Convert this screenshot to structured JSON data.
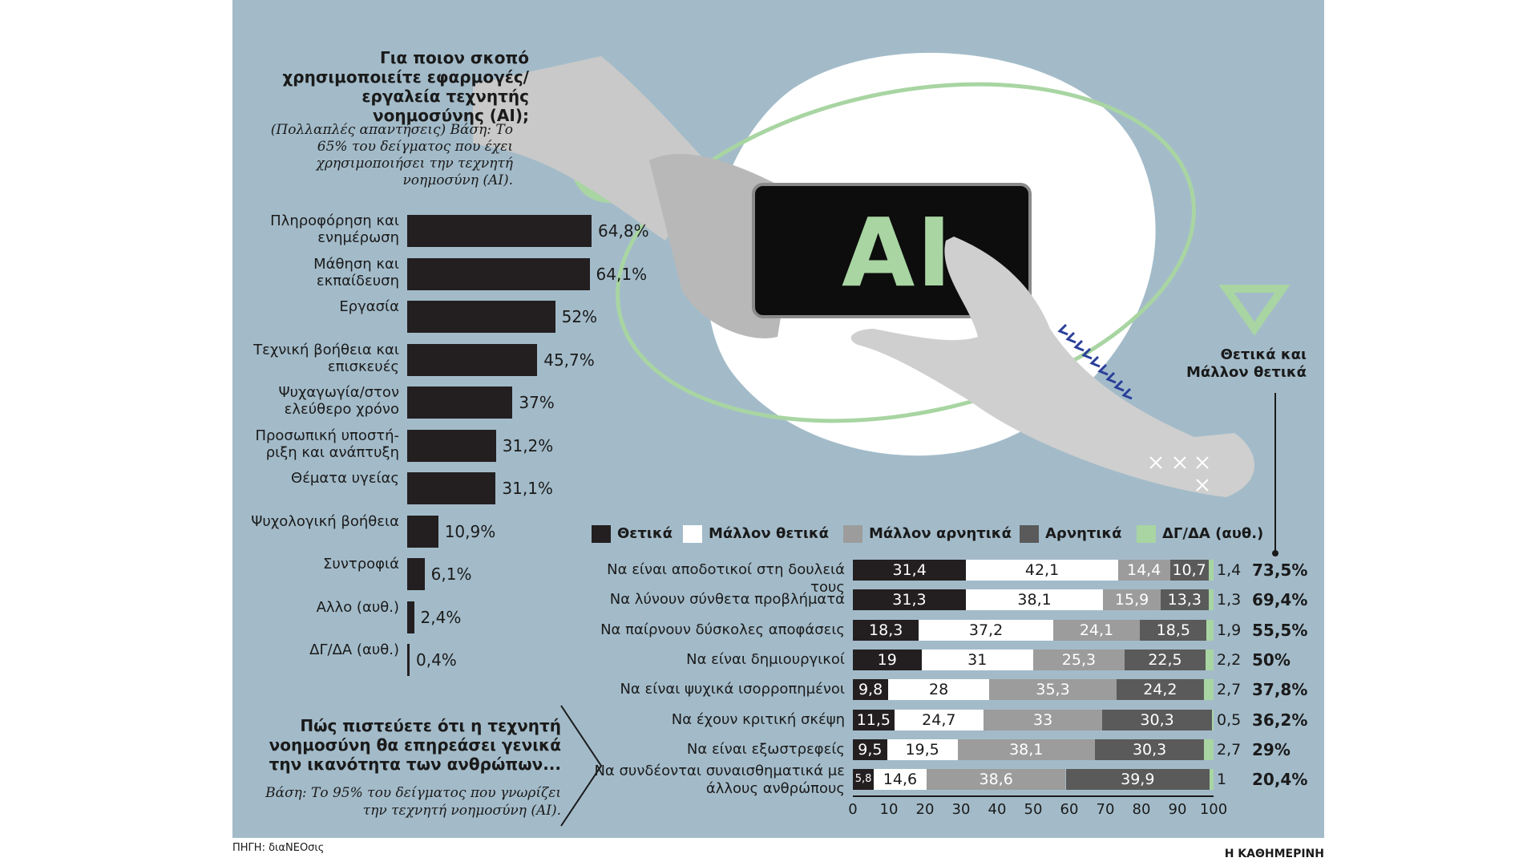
{
  "usage": {
    "title": "Για ποιον σκοπό χρησιμοποιείτε εφαρμογές/εργαλεία τεχνητής νοημοσύνης (AI);",
    "note": "(Πολλαπλές απαντήσεις) Βάση: Το 65% του δείγματος που έχει χρησιμοποιήσει την τεχνητή νοημοσύνη (AI).",
    "items": [
      {
        "label": "Πληροφόρηση και ενημέρωση",
        "value": "64,8%"
      },
      {
        "label": "Μάθηση και εκπαίδευση",
        "value": "64,1%"
      },
      {
        "label": "Εργασία",
        "value": "52%"
      },
      {
        "label": "Τεχνική βοήθεια και επισκευές",
        "value": "45,7%"
      },
      {
        "label": "Ψυχαγωγία/στον ελεύθερο χρόνο",
        "value": "37%"
      },
      {
        "label": "Προσωπική υποστή- ριξη και ανάπτυξη",
        "value": "31,2%"
      },
      {
        "label": "Θέματα υγείας",
        "value": "31,1%"
      },
      {
        "label": "Ψυχολογική βοήθεια",
        "value": "10,9%"
      },
      {
        "label": "Συντροφιά",
        "value": "6,1%"
      },
      {
        "label": "Αλλο (αυθ.)",
        "value": "2,4%"
      },
      {
        "label": "ΔΓ/ΔΑ (αυθ.)",
        "value": "0,4%"
      }
    ]
  },
  "impact": {
    "title": "Πώς πιστεύετε ότι η τεχνητή νοημοσύνη θα επηρεάσει γενικά την ικανότητα των ανθρώπων...",
    "note": "Βάση: Το 95% του δείγματος που γνωρίζει την τεχνητή νοημοσύνη (AI).",
    "positive_title": "Θετικά και Μάλλον θετικά",
    "legend": [
      "Θετικά",
      "Μάλλον θετικά",
      "Μάλλον αρνητικά",
      "Αρνητικά",
      "ΔΓ/ΔΑ (αυθ.)"
    ],
    "colors": [
      "#231f20",
      "#ffffff",
      "#9c9c9c",
      "#5a5a5a",
      "#a8d5a2"
    ],
    "ticks": [
      "0",
      "10",
      "20",
      "30",
      "40",
      "50",
      "60",
      "70",
      "80",
      "90",
      "100"
    ],
    "rows": [
      {
        "label": "Να είναι αποδοτικοί στη δουλειά τους",
        "labels": [
          "31,4",
          "42,1",
          "14,4",
          "10,7",
          "1,4"
        ],
        "total": "73,5%"
      },
      {
        "label": "Να λύνουν σύνθετα προβλήματα",
        "labels": [
          "31,3",
          "38,1",
          "15,9",
          "13,3",
          "1,3"
        ],
        "total": "69,4%"
      },
      {
        "label": "Να παίρνουν δύσκολες αποφάσεις",
        "labels": [
          "18,3",
          "37,2",
          "24,1",
          "18,5",
          "1,9"
        ],
        "total": "55,5%"
      },
      {
        "label": "Να είναι δημιουργικοί",
        "labels": [
          "19",
          "31",
          "25,3",
          "22,5",
          "2,2"
        ],
        "total": "50%"
      },
      {
        "label": "Να είναι ψυχικά ισορροπημένοι",
        "labels": [
          "9,8",
          "28",
          "35,3",
          "24,2",
          "2,7"
        ],
        "total": "37,8%"
      },
      {
        "label": "Να έχουν κριτική σκέψη",
        "labels": [
          "11,5",
          "24,7",
          "33",
          "30,3",
          "0,5"
        ],
        "total": "36,2%"
      },
      {
        "label": "Να είναι εξωστρεφείς",
        "labels": [
          "9,5",
          "19,5",
          "38,1",
          "30,3",
          "2,7"
        ],
        "total": "29%"
      },
      {
        "label": "Να συνδέονται συναισθηματικά με άλλους ανθρώπους",
        "labels": [
          "5,8",
          "14,6",
          "38,6",
          "39,9",
          "1"
        ],
        "total": "20,4%"
      }
    ]
  },
  "illustration": {
    "screen_text": "AI"
  },
  "source": "ΠΗΓΗ: διαΝΕΟσις",
  "brand": "Η ΚΑΘΗΜΕΡΙΝΗ",
  "chart_data": [
    {
      "type": "bar",
      "orientation": "horizontal",
      "title": "Για ποιον σκοπό χρησιμοποιείτε εφαρμογές/εργαλεία τεχνητής νοημοσύνης (AI);",
      "categories": [
        "Πληροφόρηση και ενημέρωση",
        "Μάθηση και εκπαίδευση",
        "Εργασία",
        "Τεχνική βοήθεια και επισκευές",
        "Ψυχαγωγία/στον ελεύθερο χρόνο",
        "Προσωπική υποστή- ριξη και ανάπτυξη",
        "Θέματα υγείας",
        "Ψυχολογική βοήθεια",
        "Συντροφιά",
        "Αλλο (αυθ.)",
        "ΔΓ/ΔΑ (αυθ.)"
      ],
      "values": [
        64.8,
        64.1,
        52,
        45.7,
        37,
        31.2,
        31.1,
        10.9,
        6.1,
        2.4,
        0.4
      ],
      "unit": "%"
    },
    {
      "type": "bar",
      "orientation": "horizontal",
      "stacked": true,
      "title": "Πώς πιστεύετε ότι η τεχνητή νοημοσύνη θα επηρεάσει γενικά την ικανότητα των ανθρώπων...",
      "categories": [
        "Να είναι αποδοτικοί στη δουλειά τους",
        "Να λύνουν σύνθετα προβλήματα",
        "Να παίρνουν δύσκολες αποφάσεις",
        "Να είναι δημιουργικοί",
        "Να είναι ψυχικά ισορροπημένοι",
        "Να έχουν κριτική σκέψη",
        "Να είναι εξωστρεφείς",
        "Να συνδέονται συναισθηματικά με άλλους ανθρώπους"
      ],
      "series": [
        {
          "name": "Θετικά",
          "values": [
            31.4,
            31.3,
            18.3,
            19,
            9.8,
            11.5,
            9.5,
            5.8
          ]
        },
        {
          "name": "Μάλλον θετικά",
          "values": [
            42.1,
            38.1,
            37.2,
            31,
            28,
            24.7,
            19.5,
            14.6
          ]
        },
        {
          "name": "Μάλλον αρνητικά",
          "values": [
            14.4,
            15.9,
            24.1,
            25.3,
            35.3,
            33,
            38.1,
            38.6
          ]
        },
        {
          "name": "Αρνητικά",
          "values": [
            10.7,
            13.3,
            18.5,
            22.5,
            24.2,
            30.3,
            30.3,
            39.9
          ]
        },
        {
          "name": "ΔΓ/ΔΑ (αυθ.)",
          "values": [
            1.4,
            1.3,
            1.9,
            2.2,
            2.7,
            0.5,
            2.7,
            1
          ]
        }
      ],
      "totals_positive": [
        73.5,
        69.4,
        55.5,
        50,
        37.8,
        36.2,
        29,
        20.4
      ],
      "xlim": [
        0,
        100
      ],
      "legend": "top"
    }
  ]
}
